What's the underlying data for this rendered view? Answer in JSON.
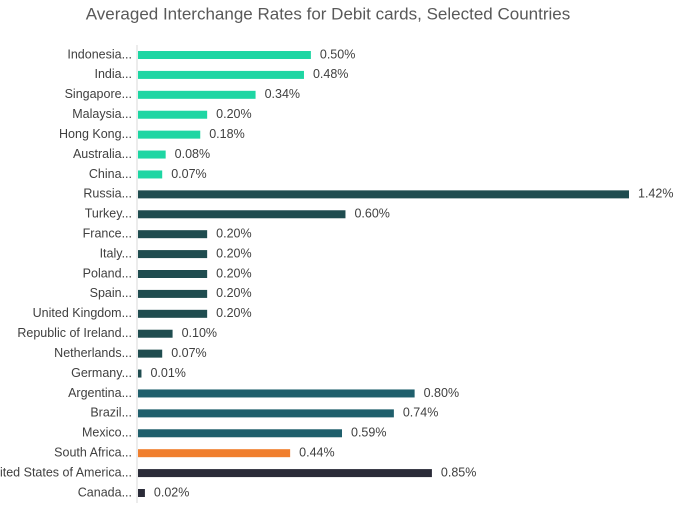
{
  "chart_data": {
    "type": "hbar",
    "title": "Averaged Interchange Rates for Debit cards, Selected Countries",
    "categories": [
      "Indonesia...",
      "India...",
      "Singapore...",
      "Malaysia...",
      "Hong Kong...",
      "Australia...",
      "China...",
      "Russia...",
      "Turkey...",
      "France...",
      "Italy...",
      "Poland...",
      "Spain...",
      "United Kingdom...",
      "Republic of Ireland...",
      "Netherlands...",
      "Germany...",
      "Argentina...",
      "Brazil...",
      "Mexico...",
      "South Africa...",
      "United States of America...",
      "Canada..."
    ],
    "values": [
      0.5,
      0.48,
      0.34,
      0.2,
      0.18,
      0.08,
      0.07,
      1.42,
      0.6,
      0.2,
      0.2,
      0.2,
      0.2,
      0.2,
      0.1,
      0.07,
      0.01,
      0.8,
      0.74,
      0.59,
      0.44,
      0.85,
      0.02
    ],
    "value_labels": [
      "0.50%",
      "0.48%",
      "0.34%",
      "0.20%",
      "0.18%",
      "0.08%",
      "0.07%",
      "1.42%",
      "0.60%",
      "0.20%",
      "0.20%",
      "0.20%",
      "0.20%",
      "0.20%",
      "0.10%",
      "0.07%",
      "0.01%",
      "0.80%",
      "0.74%",
      "0.59%",
      "0.44%",
      "0.85%",
      "0.02%"
    ],
    "colors": [
      "#1ed6a3",
      "#1ed6a3",
      "#1ed6a3",
      "#1ed6a3",
      "#1ed6a3",
      "#1ed6a3",
      "#1ed6a3",
      "#1f4c4f",
      "#1f4c4f",
      "#1f4c4f",
      "#1f4c4f",
      "#1f4c4f",
      "#1f4c4f",
      "#1f4c4f",
      "#1f4c4f",
      "#1f4c4f",
      "#1f4c4f",
      "#1f5f6c",
      "#1f5f6c",
      "#1f5f6c",
      "#f07f2e",
      "#2a2b38",
      "#2a2b38"
    ]
  }
}
